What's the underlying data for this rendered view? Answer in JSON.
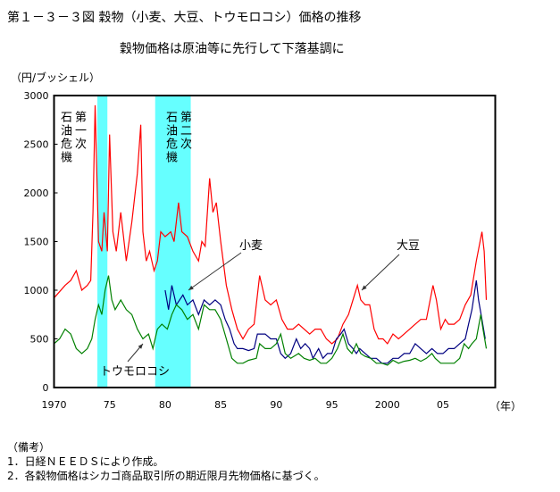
{
  "title": "第１－３－３図 穀物（小麦、大豆、トウモロコシ）価格の推移",
  "subtitle": "穀物価格は原油等に先行して下落基調に",
  "notes": {
    "heading": "（備考）",
    "items": [
      "1．日経ＮＥＥＤＳにより作成。",
      "2．各穀物価格はシカゴ商品取引所の期近限月先物価格に基づく。"
    ]
  },
  "chart_data": {
    "type": "line",
    "title": "第１－３－３図 穀物（小麦、大豆、トウモロコシ）価格の推移",
    "ylabel": "（円/ブッシェル）",
    "xlabel": "（年）",
    "xlim": [
      1970,
      2009.7
    ],
    "ylim": [
      0,
      3000
    ],
    "yticks": [
      0,
      500,
      1000,
      1500,
      2000,
      2500,
      3000
    ],
    "ytick_labels": [
      "0",
      "500",
      "1000",
      "1500",
      "2000",
      "2500",
      "3000"
    ],
    "xticks": [
      1970,
      1975,
      1980,
      1985,
      1990,
      1995,
      2000,
      2005
    ],
    "xtick_labels": [
      "1970",
      "75",
      "80",
      "85",
      "90",
      "95",
      "2000",
      "05"
    ],
    "grid": false,
    "shaded_periods": [
      {
        "from": 1973.9,
        "to": 1974.8,
        "label_col1": "第一次",
        "label_col2": "石油危機",
        "color": "#66ffff"
      },
      {
        "from": 1979.1,
        "to": 1982.3,
        "label_col1": "第二次",
        "label_col2": "石油危機",
        "color": "#66ffff"
      }
    ],
    "series": [
      {
        "name": "大豆",
        "color": "#ff0000",
        "x": [
          1970,
          1971,
          1971.5,
          1972,
          1972.5,
          1973,
          1973.3,
          1973.5,
          1973.7,
          1974,
          1974.3,
          1974.5,
          1974.8,
          1975,
          1975.3,
          1975.6,
          1976,
          1976.5,
          1977,
          1977.5,
          1977.8,
          1978,
          1978.3,
          1978.6,
          1979,
          1979.3,
          1979.6,
          1980,
          1980.5,
          1980.8,
          1981.2,
          1981.5,
          1982,
          1982.5,
          1983,
          1983.3,
          1983.6,
          1984,
          1984.3,
          1984.6,
          1985,
          1985.5,
          1986,
          1986.5,
          1987,
          1987.5,
          1988,
          1988.5,
          1989,
          1989.5,
          1990,
          1990.5,
          1991,
          1991.5,
          1992,
          1993,
          1993.5,
          1994,
          1994.5,
          1995,
          1995.5,
          1996,
          1996.5,
          1996.9,
          1997.3,
          1997.6,
          1998,
          1998.4,
          1998.8,
          1999.2,
          1999.6,
          2000,
          2000.5,
          2001,
          2001.5,
          2002,
          2002.5,
          2003,
          2003.5,
          2004.1,
          2004.4,
          2004.8,
          2005.2,
          2005.5,
          2006,
          2006.5,
          2007,
          2007.5,
          2008,
          2008.5,
          2008.7,
          2008.9
        ],
        "values": [
          920,
          1050,
          1100,
          1200,
          1000,
          1050,
          1100,
          1800,
          2900,
          1500,
          1400,
          1800,
          1400,
          2600,
          1600,
          1400,
          1800,
          1300,
          1700,
          2200,
          2700,
          1600,
          1300,
          1400,
          1200,
          1300,
          1600,
          1550,
          1600,
          1500,
          1900,
          1600,
          1550,
          1400,
          1300,
          1500,
          1450,
          2150,
          1800,
          1900,
          1500,
          1050,
          800,
          600,
          500,
          600,
          650,
          1150,
          900,
          850,
          900,
          700,
          600,
          600,
          650,
          550,
          600,
          600,
          500,
          450,
          500,
          650,
          750,
          900,
          1050,
          900,
          850,
          850,
          600,
          500,
          500,
          450,
          550,
          500,
          550,
          600,
          650,
          700,
          700,
          1050,
          900,
          600,
          700,
          650,
          650,
          700,
          850,
          950,
          1300,
          1600,
          1400,
          900
        ]
      },
      {
        "name": "小麦",
        "color": "#000080",
        "x": [
          1980,
          1980.3,
          1980.6,
          1981,
          1981.3,
          1981.6,
          1982,
          1982.5,
          1983,
          1983.5,
          1984,
          1984.5,
          1985,
          1985.4,
          1985.8,
          1986.2,
          1986.5,
          1987,
          1987.5,
          1988,
          1988.3,
          1988.6,
          1989,
          1989.5,
          1990,
          1990.4,
          1990.8,
          1991.3,
          1991.8,
          1992.2,
          1992.6,
          1993,
          1993.3,
          1993.8,
          1994.2,
          1994.6,
          1995,
          1995.4,
          1995.8,
          1996.1,
          1996.5,
          1996.9,
          1997.2,
          1997.5,
          1998,
          1998.5,
          1999,
          1999.5,
          2000,
          2000.5,
          2001,
          2001.5,
          2002,
          2002.5,
          2003,
          2003.5,
          2004,
          2004.5,
          2005,
          2005.5,
          2006,
          2006.5,
          2007,
          2007.3,
          2007.6,
          2008,
          2008.2,
          2008.5,
          2008.8
        ],
        "values": [
          1000,
          800,
          1050,
          850,
          900,
          950,
          850,
          900,
          750,
          900,
          850,
          900,
          850,
          700,
          600,
          450,
          400,
          400,
          380,
          400,
          550,
          550,
          550,
          500,
          500,
          350,
          300,
          350,
          500,
          400,
          450,
          400,
          300,
          400,
          300,
          350,
          350,
          500,
          550,
          600,
          450,
          400,
          350,
          400,
          350,
          300,
          300,
          250,
          250,
          300,
          300,
          350,
          350,
          450,
          400,
          350,
          400,
          350,
          350,
          400,
          400,
          450,
          500,
          650,
          800,
          1100,
          900,
          700,
          500
        ]
      },
      {
        "name": "トウモロコシ",
        "color": "#008000",
        "x": [
          1970,
          1970.5,
          1971,
          1971.5,
          1972,
          1972.5,
          1973,
          1973.4,
          1973.7,
          1974,
          1974.3,
          1974.6,
          1974.9,
          1975.2,
          1975.5,
          1976,
          1976.5,
          1977,
          1977.5,
          1978,
          1978.5,
          1978.9,
          1979.3,
          1979.7,
          1980.2,
          1980.6,
          1981,
          1981.5,
          1982,
          1982.5,
          1983,
          1983.5,
          1984,
          1984.5,
          1985,
          1985.5,
          1986,
          1986.5,
          1987,
          1987.5,
          1988.2,
          1988.5,
          1989,
          1989.5,
          1990,
          1990.4,
          1990.8,
          1991.3,
          1992,
          1992.5,
          1993,
          1993.5,
          1994,
          1994.5,
          1995,
          1995.5,
          1996,
          1996.4,
          1996.8,
          1997.2,
          1997.6,
          1998,
          1998.5,
          1999,
          1999.5,
          2000,
          2000.5,
          2001,
          2001.5,
          2002,
          2002.5,
          2003,
          2003.5,
          2004,
          2004.3,
          2004.8,
          2005.3,
          2006,
          2006.5,
          2006.9,
          2007.3,
          2007.6,
          2008,
          2008.4,
          2008.6,
          2008.9
        ],
        "values": [
          450,
          500,
          600,
          550,
          400,
          350,
          400,
          500,
          700,
          850,
          750,
          1000,
          1150,
          900,
          800,
          900,
          800,
          750,
          600,
          500,
          550,
          400,
          600,
          650,
          600,
          750,
          850,
          800,
          700,
          750,
          600,
          850,
          800,
          800,
          700,
          500,
          300,
          250,
          250,
          280,
          300,
          450,
          400,
          400,
          450,
          550,
          350,
          300,
          350,
          300,
          280,
          300,
          250,
          250,
          300,
          400,
          550,
          400,
          350,
          450,
          350,
          320,
          300,
          250,
          250,
          230,
          280,
          250,
          270,
          280,
          300,
          270,
          300,
          350,
          300,
          250,
          250,
          250,
          300,
          450,
          400,
          450,
          500,
          750,
          600,
          400
        ]
      }
    ],
    "annotations": [
      {
        "text": "小麦",
        "series": "小麦"
      },
      {
        "text": "大豆",
        "series": "大豆"
      },
      {
        "text": "トウモロコシ",
        "series": "トウモロコシ"
      }
    ]
  }
}
